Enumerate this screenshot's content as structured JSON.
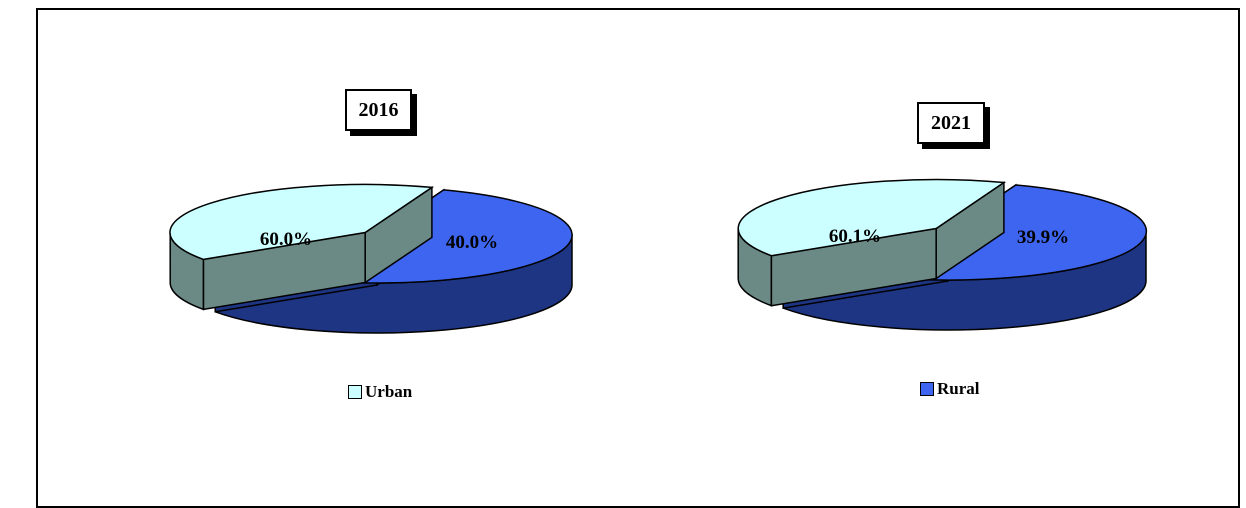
{
  "colors": {
    "rural": "#3d65f0",
    "rural_side": "#1e3584",
    "urban": "#ccffff",
    "urban_side": "#6b8a85"
  },
  "chart_data": [
    {
      "type": "pie",
      "title": "2016",
      "slices": [
        {
          "name": "Rural",
          "value": 60.0,
          "label": "60.0%"
        },
        {
          "name": "Urban",
          "value": 40.0,
          "label": "40.0%"
        }
      ],
      "legend": {
        "label": "Urban",
        "placement": "bottom"
      }
    },
    {
      "type": "pie",
      "title": "2021",
      "slices": [
        {
          "name": "Rural",
          "value": 60.1,
          "label": "60.1%"
        },
        {
          "name": "Urban",
          "value": 39.9,
          "label": "39.9%"
        }
      ],
      "legend": {
        "label": "Rural",
        "placement": "bottom"
      }
    }
  ]
}
